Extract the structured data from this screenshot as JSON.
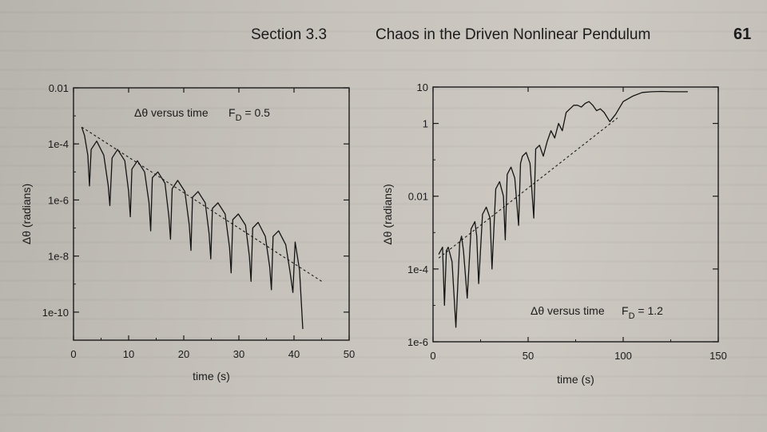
{
  "header": {
    "section": "Section 3.3",
    "title": "Chaos in the Driven Nonlinear Pendulum",
    "page_number": "61"
  },
  "chart_data": [
    {
      "type": "line",
      "title": "",
      "annotation": "Δθ versus time",
      "fd_label": "F",
      "fd_sub": "D",
      "fd_value": " = 0.5",
      "xlabel": "time (s)",
      "ylabel": "Δθ (radians)",
      "xlim": [
        0,
        50
      ],
      "ylim_log10": [
        -11,
        -2
      ],
      "log_y": true,
      "x_ticks": [
        0,
        10,
        20,
        30,
        40,
        50
      ],
      "x_tick_labels": [
        "0",
        "10",
        "20",
        "30",
        "40",
        "50"
      ],
      "y_ticks_log10": [
        -2,
        -4,
        -6,
        -8,
        -10
      ],
      "y_tick_labels": [
        "0.01",
        "1e-4",
        "1e-6",
        "1e-8",
        "1e-10"
      ],
      "dashed_fit": {
        "x": [
          1.5,
          45
        ],
        "log10_y": [
          -3.4,
          -8.9
        ]
      },
      "series": [
        {
          "x": [
            1.5,
            2.0,
            2.6,
            2.9,
            3.2,
            4.2,
            5.5,
            6.3,
            6.6,
            7.0,
            8.0,
            9.3,
            10.0,
            10.3,
            10.6,
            11.6,
            12.9,
            13.7,
            14.0,
            14.3,
            15.3,
            16.6,
            17.3,
            17.6,
            17.9,
            18.9,
            20.2,
            21.0,
            21.3,
            21.6,
            22.6,
            23.9,
            24.6,
            24.9,
            25.2,
            26.2,
            27.5,
            28.3,
            28.6,
            28.9,
            29.9,
            31.2,
            31.9,
            32.2,
            32.5,
            33.5,
            34.8,
            35.6,
            35.9,
            36.2,
            37.2,
            38.5,
            39.3,
            39.8,
            40.2,
            41.0,
            41.6
          ],
          "log10_y": [
            -3.4,
            -3.7,
            -4.4,
            -5.5,
            -4.2,
            -3.9,
            -4.4,
            -5.5,
            -6.2,
            -4.5,
            -4.2,
            -4.6,
            -5.7,
            -6.6,
            -4.9,
            -4.6,
            -5.0,
            -6.1,
            -7.1,
            -5.2,
            -5.0,
            -5.4,
            -6.6,
            -7.4,
            -5.6,
            -5.3,
            -5.7,
            -6.9,
            -7.8,
            -5.9,
            -5.7,
            -6.1,
            -7.2,
            -8.1,
            -6.3,
            -6.1,
            -6.5,
            -7.7,
            -8.6,
            -6.7,
            -6.5,
            -6.9,
            -8.0,
            -8.9,
            -7.0,
            -6.8,
            -7.3,
            -8.4,
            -9.2,
            -7.3,
            -7.1,
            -7.6,
            -8.6,
            -9.3,
            -7.5,
            -8.5,
            -10.6
          ]
        }
      ]
    },
    {
      "type": "line",
      "title": "",
      "annotation": "Δθ versus time",
      "fd_label": "F",
      "fd_sub": "D",
      "fd_value": " = 1.2",
      "xlabel": "time (s)",
      "ylabel": "Δθ (radians)",
      "xlim": [
        0,
        150
      ],
      "ylim_log10": [
        -6,
        1
      ],
      "log_y": true,
      "x_ticks": [
        0,
        50,
        100,
        150
      ],
      "x_tick_labels": [
        "0",
        "50",
        "100",
        "150"
      ],
      "y_ticks_log10": [
        1,
        0,
        -2,
        -4,
        -6
      ],
      "y_tick_labels": [
        "10",
        "1",
        "0.01",
        "1e-4",
        "1e-6"
      ],
      "dashed_fit": {
        "x": [
          3,
          97
        ],
        "log10_y": [
          -3.7,
          0.15
        ]
      },
      "series": [
        {
          "x": [
            3,
            5,
            6,
            7,
            8,
            10,
            12,
            14,
            15,
            16,
            18,
            20,
            22,
            23,
            24,
            26,
            28,
            30,
            31,
            33,
            35,
            37,
            38,
            39,
            41,
            43,
            45,
            46,
            47,
            49,
            51,
            53,
            54,
            56,
            58,
            60,
            62,
            64,
            66,
            68,
            70,
            72,
            74,
            76,
            78,
            80,
            82,
            84,
            86,
            88,
            90,
            93,
            96,
            100,
            105,
            110,
            115,
            120,
            125,
            130,
            134
          ],
          "log10_y": [
            -3.6,
            -3.4,
            -5.0,
            -3.5,
            -3.4,
            -3.8,
            -5.6,
            -3.3,
            -3.1,
            -3.5,
            -4.8,
            -2.9,
            -2.7,
            -3.1,
            -4.4,
            -2.5,
            -2.3,
            -2.6,
            -4.0,
            -1.8,
            -1.6,
            -2.0,
            -3.2,
            -1.4,
            -1.2,
            -1.5,
            -2.8,
            -1.1,
            -0.9,
            -0.8,
            -1.1,
            -2.6,
            -0.7,
            -0.6,
            -0.9,
            -0.5,
            -0.2,
            -0.4,
            0.0,
            -0.2,
            0.3,
            0.4,
            0.5,
            0.5,
            0.45,
            0.55,
            0.6,
            0.5,
            0.35,
            0.4,
            0.3,
            0.05,
            0.25,
            0.6,
            0.75,
            0.85,
            0.87,
            0.88,
            0.87,
            0.87,
            0.87
          ]
        }
      ]
    }
  ]
}
